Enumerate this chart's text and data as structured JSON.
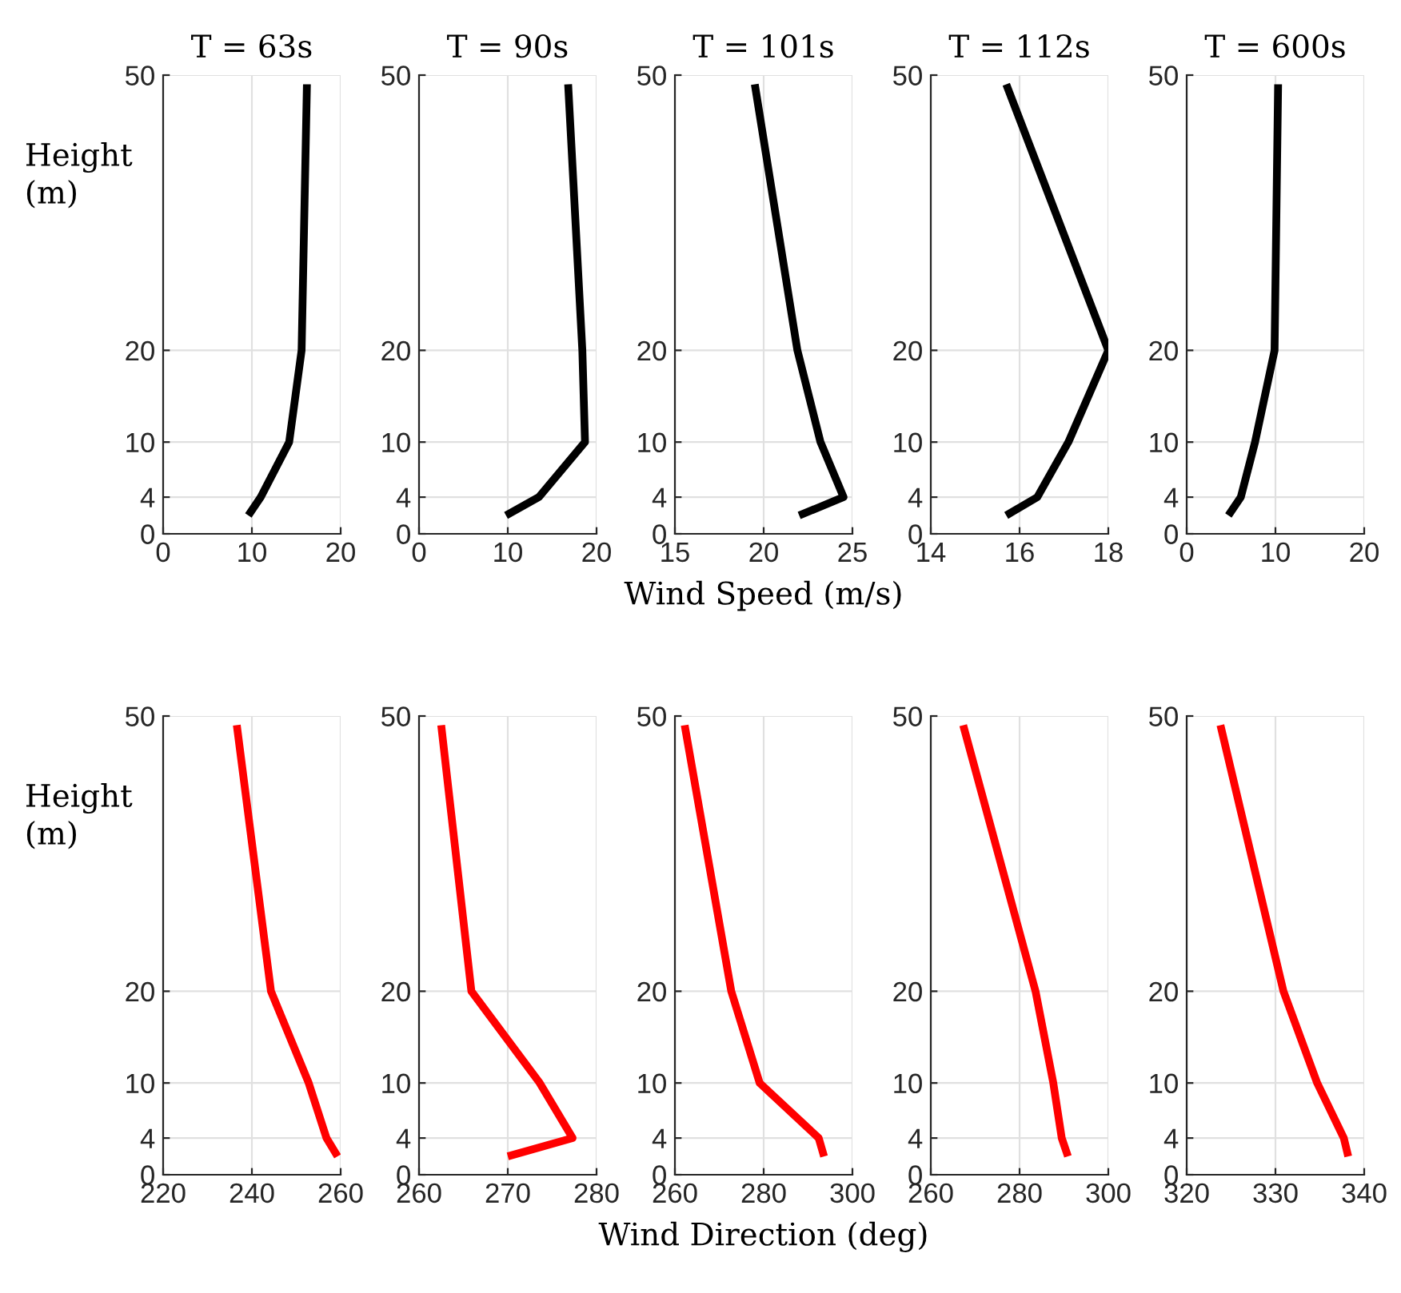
{
  "chart_data": [
    {
      "type": "line",
      "title": "T = 63s",
      "ylabel": "Height\n(m)",
      "xlim": [
        0,
        20
      ],
      "xticks": [
        0,
        10,
        20
      ],
      "ylim": [
        0,
        50
      ],
      "yticks": [
        0,
        4,
        10,
        20,
        50
      ],
      "grid": true,
      "line_style": "solid",
      "series": [
        {
          "color": "#000000",
          "x": [
            9.6,
            11,
            14.2,
            15.6,
            16.2
          ],
          "values": [
            2,
            4,
            10,
            20,
            49
          ]
        }
      ]
    },
    {
      "type": "line",
      "title": "T = 90s",
      "xlim": [
        0,
        20
      ],
      "xticks": [
        0,
        10,
        20
      ],
      "ylim": [
        0,
        50
      ],
      "yticks": [
        0,
        4,
        10,
        20,
        50
      ],
      "grid": true,
      "line_style": "solid",
      "series": [
        {
          "color": "#000000",
          "x": [
            9.8,
            13.5,
            18.7,
            18.4,
            16.8
          ],
          "values": [
            2,
            4,
            10,
            20,
            49
          ]
        }
      ]
    },
    {
      "type": "line",
      "title": "T = 101s",
      "xlabel": "Wind Speed (m/s)",
      "xlim": [
        15,
        25
      ],
      "xticks": [
        15,
        20,
        25
      ],
      "ylim": [
        0,
        50
      ],
      "yticks": [
        0,
        4,
        10,
        20,
        50
      ],
      "grid": true,
      "line_style": "solid",
      "series": [
        {
          "color": "#000000",
          "x": [
            22.0,
            24.5,
            23.2,
            21.9,
            19.5
          ],
          "values": [
            2,
            4,
            10,
            20,
            49
          ]
        }
      ]
    },
    {
      "type": "line",
      "title": "T = 112s",
      "xlim": [
        14,
        18
      ],
      "xticks": [
        14,
        16,
        18
      ],
      "ylim": [
        0,
        50
      ],
      "yticks": [
        0,
        4,
        10,
        20,
        50
      ],
      "grid": true,
      "line_style": "solid",
      "series": [
        {
          "color": "#000000",
          "x": [
            15.7,
            16.4,
            17.1,
            18.0,
            15.7
          ],
          "values": [
            2,
            4,
            10,
            20,
            49
          ]
        }
      ]
    },
    {
      "type": "line",
      "title": "T = 600s",
      "xlim": [
        0,
        20
      ],
      "xticks": [
        0,
        10,
        20
      ],
      "ylim": [
        0,
        50
      ],
      "yticks": [
        0,
        4,
        10,
        20,
        50
      ],
      "grid": true,
      "line_style": "solid",
      "series": [
        {
          "color": "#000000",
          "x": [
            4.7,
            6.1,
            7.7,
            9.9,
            10.3
          ],
          "values": [
            2,
            4,
            10,
            20,
            49
          ]
        }
      ]
    },
    {
      "type": "line",
      "ylabel": "Height\n(m)",
      "xlim": [
        220,
        260
      ],
      "xticks": [
        220,
        240,
        260
      ],
      "ylim": [
        0,
        50
      ],
      "yticks": [
        0,
        4,
        10,
        20,
        50
      ],
      "grid": true,
      "line_style": "solid",
      "series": [
        {
          "color": "#ff0000",
          "x": [
            259.3,
            256.8,
            252.8,
            244.3,
            236.6
          ],
          "values": [
            2,
            4,
            10,
            20,
            49
          ]
        }
      ]
    },
    {
      "type": "line",
      "xlim": [
        260,
        280
      ],
      "xticks": [
        260,
        270,
        280
      ],
      "ylim": [
        0,
        50
      ],
      "yticks": [
        0,
        4,
        10,
        20,
        50
      ],
      "grid": true,
      "line_style": "solid",
      "series": [
        {
          "color": "#ff0000",
          "x": [
            270,
            277.3,
            273.6,
            265.9,
            262.5
          ],
          "values": [
            2,
            4,
            10,
            20,
            49
          ]
        }
      ]
    },
    {
      "type": "line",
      "xlabel": "Wind Direction (deg)",
      "xlim": [
        260,
        300
      ],
      "xticks": [
        260,
        280,
        300
      ],
      "ylim": [
        0,
        50
      ],
      "yticks": [
        0,
        4,
        10,
        20,
        50
      ],
      "grid": true,
      "line_style": "solid",
      "series": [
        {
          "color": "#ff0000",
          "x": [
            293.6,
            292.4,
            279.1,
            272.7,
            262.2
          ],
          "values": [
            2,
            4,
            10,
            20,
            49
          ]
        }
      ]
    },
    {
      "type": "line",
      "xlim": [
        260,
        300
      ],
      "xticks": [
        260,
        280,
        300
      ],
      "ylim": [
        0,
        50
      ],
      "yticks": [
        0,
        4,
        10,
        20,
        50
      ],
      "grid": true,
      "line_style": "solid",
      "series": [
        {
          "color": "#ff0000",
          "x": [
            290.9,
            289.5,
            287.6,
            283.6,
            267.3
          ],
          "values": [
            2,
            4,
            10,
            20,
            49
          ]
        }
      ]
    },
    {
      "type": "line",
      "xlim": [
        320,
        340
      ],
      "xticks": [
        320,
        330,
        340
      ],
      "ylim": [
        0,
        50
      ],
      "yticks": [
        0,
        4,
        10,
        20,
        50
      ],
      "grid": true,
      "line_style": "solid",
      "series": [
        {
          "color": "#ff0000",
          "x": [
            338.2,
            337.7,
            334.7,
            330.9,
            323.8
          ],
          "values": [
            2,
            4,
            10,
            20,
            49
          ]
        }
      ]
    }
  ]
}
